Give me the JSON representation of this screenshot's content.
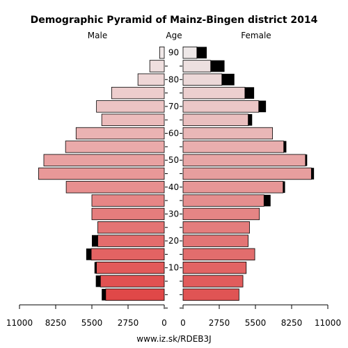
{
  "chart_data": {
    "type": "bar",
    "title": "Demographic Pyramid of Mainz-Bingen district 2014",
    "left_label": "Male",
    "center_label": "Age",
    "right_label": "Female",
    "footer": "www.iz.sk/RDEB3J",
    "x_ticks_left": [
      "11000",
      "8250",
      "5500",
      "2750",
      "0"
    ],
    "x_ticks_right": [
      "0",
      "2750",
      "5500",
      "8250",
      "11000"
    ],
    "xlim": [
      0,
      11000
    ],
    "age_ticks": [
      "10",
      "20",
      "30",
      "40",
      "50",
      "60",
      "70",
      "80",
      "90"
    ],
    "age_groups": [
      "0-4",
      "5-9",
      "10-14",
      "15-19",
      "20-24",
      "25-29",
      "30-34",
      "35-39",
      "40-44",
      "45-49",
      "50-54",
      "55-59",
      "60-64",
      "65-69",
      "70-74",
      "75-79",
      "80-84",
      "85-89",
      "90+"
    ],
    "series": [
      {
        "name": "Male",
        "values": [
          4450,
          4850,
          5150,
          5550,
          5050,
          5050,
          5500,
          5500,
          7450,
          9550,
          9150,
          7500,
          6700,
          4750,
          5150,
          4000,
          2000,
          1100,
          350
        ],
        "excess": [
          300,
          350,
          150,
          380,
          450,
          0,
          0,
          0,
          0,
          0,
          0,
          0,
          0,
          0,
          0,
          0,
          0,
          0,
          0
        ]
      },
      {
        "name": "Female",
        "values": [
          4250,
          4550,
          4800,
          5450,
          4950,
          5050,
          5800,
          6150,
          7600,
          9750,
          9300,
          7650,
          6800,
          4950,
          5750,
          4700,
          2950,
          2100,
          1050
        ],
        "excess": [
          0,
          0,
          0,
          0,
          0,
          0,
          0,
          500,
          150,
          200,
          130,
          200,
          0,
          300,
          550,
          700,
          950,
          1050,
          750
        ]
      }
    ]
  }
}
